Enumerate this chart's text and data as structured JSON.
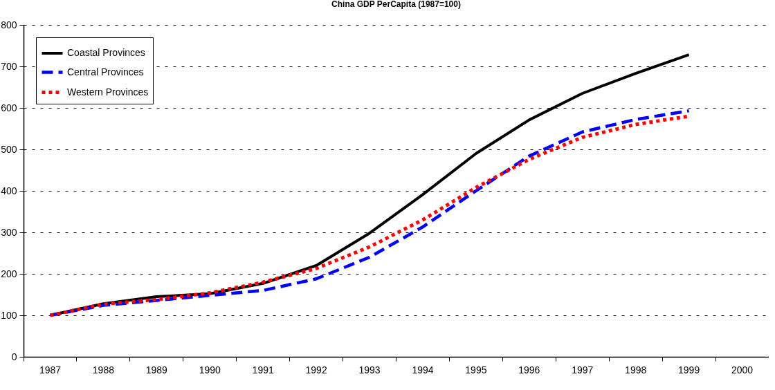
{
  "chart_data": {
    "type": "line",
    "title": "China GDP PerCapita (1987=100)",
    "categories": [
      "1987",
      "1988",
      "1989",
      "1990",
      "1991",
      "1992",
      "1993",
      "1994",
      "1995",
      "1996",
      "1997",
      "1998",
      "1999",
      "2000"
    ],
    "series": [
      {
        "name": "Coastal Provinces",
        "color": "#000000",
        "line_style": "solid",
        "values": [
          100,
          128,
          145,
          152,
          177,
          220,
          298,
          391,
          490,
          571,
          635,
          683,
          728,
          null
        ]
      },
      {
        "name": "Central Provinces",
        "color": "#0000ff",
        "line_style": "dashed",
        "values": [
          100,
          124,
          136,
          148,
          160,
          188,
          240,
          313,
          400,
          484,
          542,
          572,
          593,
          null
        ]
      },
      {
        "name": "Western Provinces",
        "color": "#ff0000",
        "line_style": "dotted",
        "values": [
          100,
          127,
          138,
          154,
          180,
          213,
          265,
          330,
          408,
          476,
          529,
          560,
          580,
          null
        ]
      }
    ],
    "ylim": [
      0,
      800
    ],
    "yticks": [
      0,
      100,
      200,
      300,
      400,
      500,
      600,
      700,
      800
    ],
    "grid": "y",
    "legend": "top left",
    "marker": "none"
  }
}
